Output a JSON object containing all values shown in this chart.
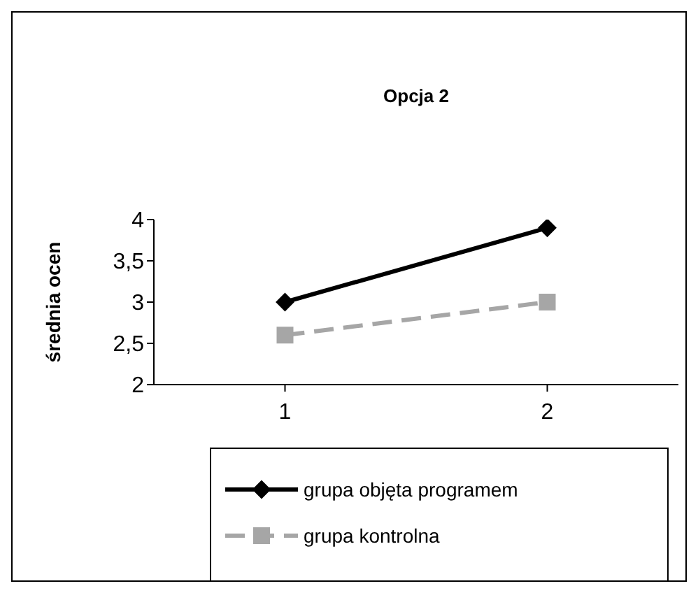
{
  "chart_data": {
    "type": "line",
    "title": "Opcja 2",
    "ylabel": "średnia ocen",
    "categories": [
      "1",
      "2"
    ],
    "series": [
      {
        "name": "grupa objęta programem",
        "color": "#000000",
        "values": [
          3,
          3.9
        ],
        "marker": "diamond",
        "line_style": "solid"
      },
      {
        "name": "grupa kontrolna",
        "color": "#a6a6a6",
        "values": [
          2.6,
          3.0
        ],
        "marker": "square",
        "line_style": "dashed"
      }
    ],
    "ylim": [
      2,
      4
    ],
    "yticks": [
      2,
      {
        "value": 2.5,
        "label": "2,5"
      },
      3,
      {
        "value": 3.5,
        "label": "3,5"
      },
      4
    ],
    "grid": false,
    "legend": "bottom"
  }
}
